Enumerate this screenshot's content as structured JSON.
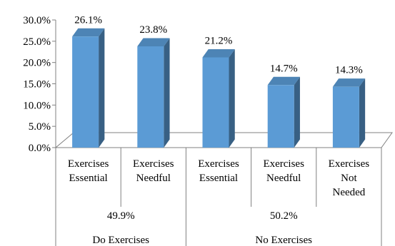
{
  "chart_data": {
    "type": "bar",
    "three_d": true,
    "title": "",
    "xlabel": "",
    "ylabel": "",
    "ylim": [
      0,
      30
    ],
    "ytick_labels": [
      "0.0%",
      "5.0%",
      "10.0%",
      "15.0%",
      "20.0%",
      "25.0%",
      "30.0%"
    ],
    "grid": false,
    "legend": "none",
    "bar_color": "#5B9BD5",
    "categories": [
      [
        "Exercises",
        "Essential"
      ],
      [
        "Exercises",
        "Needful"
      ],
      [
        "Exercises",
        "Essential"
      ],
      [
        "Exercises",
        "Needful"
      ],
      [
        "Exercises",
        "Not",
        "Needed"
      ]
    ],
    "values": [
      26.1,
      23.8,
      21.2,
      14.7,
      14.3
    ],
    "value_labels": [
      "26.1%",
      "23.8%",
      "21.2%",
      "14.7%",
      "14.3%"
    ],
    "groups": [
      {
        "name": "Do Exercises",
        "total": "49.9%",
        "span": [
          0,
          1
        ]
      },
      {
        "name": "No Exercises",
        "total": "50.2%",
        "span": [
          2,
          4
        ]
      }
    ]
  }
}
